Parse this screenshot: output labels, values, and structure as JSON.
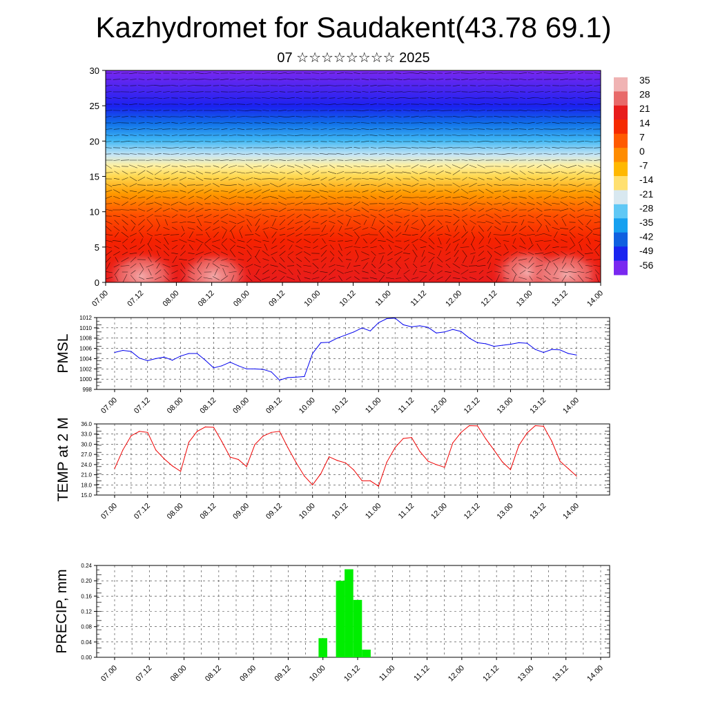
{
  "header": {
    "title": "Kazhydromet for Saudakent(43.78 69.1)",
    "subtitle": "07 ☆☆☆☆☆☆☆☆ 2025"
  },
  "chart_data": [
    {
      "id": "vertical-section",
      "type": "heatmap",
      "ylim": [
        0,
        30
      ],
      "yticks": [
        "0",
        "5",
        "10",
        "15",
        "20",
        "25",
        "30"
      ],
      "xticks": [
        "07.00",
        "07.12",
        "08.00",
        "08.12",
        "09.00",
        "09.12",
        "10.00",
        "10.12",
        "11.00",
        "11.12",
        "12.00",
        "12.12",
        "13.00",
        "13.12",
        "14.00"
      ],
      "colorbar": {
        "labels": [
          "35",
          "28",
          "21",
          "14",
          "7",
          "0",
          "-7",
          "-14",
          "-21",
          "-28",
          "-35",
          "-42",
          "-49",
          "-56"
        ],
        "colors": [
          "#f0b3b3",
          "#e86a6a",
          "#e81c1c",
          "#f52a00",
          "#ff5a00",
          "#ff8c00",
          "#ffb800",
          "#ffe070",
          "#d8e8f0",
          "#60c8f5",
          "#16a0f0",
          "#1060e0",
          "#1a24f0",
          "#7a28f0"
        ]
      },
      "overlay": "wind vectors"
    },
    {
      "id": "pmsl",
      "type": "line",
      "ylabel": "PMSL",
      "ylim": [
        998,
        1012
      ],
      "yticks": [
        "1012",
        "1010",
        "1008",
        "1006",
        "1004",
        "1002",
        "1000",
        "998"
      ],
      "xticks": [
        "07.00",
        "07.12",
        "08.00",
        "08.12",
        "09.00",
        "09.12",
        "10.00",
        "10.12",
        "11.00",
        "11.12",
        "12.00",
        "12.12",
        "13.00",
        "13.12",
        "14.00"
      ],
      "x_step_hours": 3,
      "color": "#0000ee",
      "values": [
        1005.2,
        1005.6,
        1005.4,
        1004.1,
        1003.6,
        1004.0,
        1004.3,
        1003.7,
        1004.5,
        1005.0,
        1005.0,
        1003.7,
        1002.2,
        1002.6,
        1003.3,
        1002.6,
        1002.0,
        1002.0,
        1001.9,
        1001.4,
        999.8,
        1000.3,
        1000.4,
        1000.5,
        1005.0,
        1007.1,
        1007.2,
        1008.0,
        1008.6,
        1009.2,
        1010.0,
        1009.4,
        1011.0,
        1011.8,
        1011.9,
        1010.6,
        1010.2,
        1010.4,
        1010.1,
        1009.0,
        1009.2,
        1009.7,
        1009.3,
        1008.0,
        1007.1,
        1006.9,
        1006.4,
        1006.6,
        1006.8,
        1007.1,
        1007.0,
        1005.8,
        1005.2,
        1005.8,
        1005.7,
        1005.0,
        1004.7
      ]
    },
    {
      "id": "temp2m",
      "type": "line",
      "ylabel": "TEMP at 2 M",
      "ylim": [
        15,
        36
      ],
      "yticks": [
        "36.0",
        "33.0",
        "30.0",
        "27.0",
        "24.0",
        "21.0",
        "18.0",
        "15.0"
      ],
      "xticks": [
        "07.00",
        "07.12",
        "08.00",
        "08.12",
        "09.00",
        "09.12",
        "10.00",
        "10.12",
        "11.00",
        "11.12",
        "12.00",
        "12.12",
        "13.00",
        "13.12",
        "14.00"
      ],
      "x_step_hours": 3,
      "color": "#ee0000",
      "values": [
        22.8,
        28.3,
        32.5,
        33.8,
        33.5,
        28.3,
        25.7,
        23.6,
        22.0,
        30.6,
        33.8,
        35.1,
        35.0,
        30.8,
        26.2,
        25.5,
        23.4,
        29.9,
        32.4,
        33.5,
        33.8,
        29.0,
        24.6,
        20.6,
        18.0,
        21.3,
        26.3,
        25.2,
        24.5,
        22.4,
        19.2,
        19.2,
        17.6,
        24.7,
        29.0,
        31.7,
        32.0,
        27.9,
        25.0,
        24.0,
        23.2,
        30.4,
        33.5,
        35.5,
        35.4,
        31.6,
        28.3,
        24.8,
        22.5,
        29.6,
        33.3,
        35.5,
        35.3,
        30.9,
        25.0,
        22.8,
        20.6
      ]
    },
    {
      "id": "precip",
      "type": "bar",
      "ylabel": "PRECIP, mm",
      "ylim": [
        0,
        0.24
      ],
      "yticks": [
        "0.24",
        "0.20",
        "0.16",
        "0.12",
        "0.08",
        "0.04",
        "0.00"
      ],
      "xticks": [
        "07.00",
        "07.12",
        "08.00",
        "08.12",
        "09.00",
        "09.12",
        "10.00",
        "10.12",
        "11.00",
        "11.12",
        "12.00",
        "12.12",
        "13.00",
        "13.12",
        "14.00"
      ],
      "x_step_hours": 3,
      "color": "#00ee00",
      "values": [
        0,
        0,
        0,
        0,
        0,
        0,
        0,
        0,
        0,
        0,
        0,
        0,
        0,
        0,
        0,
        0,
        0,
        0,
        0,
        0,
        0,
        0,
        0,
        0,
        0.05,
        0,
        0.2,
        0.23,
        0.15,
        0.02,
        0,
        0,
        0,
        0,
        0,
        0,
        0,
        0,
        0,
        0,
        0,
        0,
        0,
        0,
        0,
        0,
        0,
        0,
        0,
        0,
        0,
        0,
        0,
        0,
        0,
        0,
        0
      ]
    }
  ]
}
